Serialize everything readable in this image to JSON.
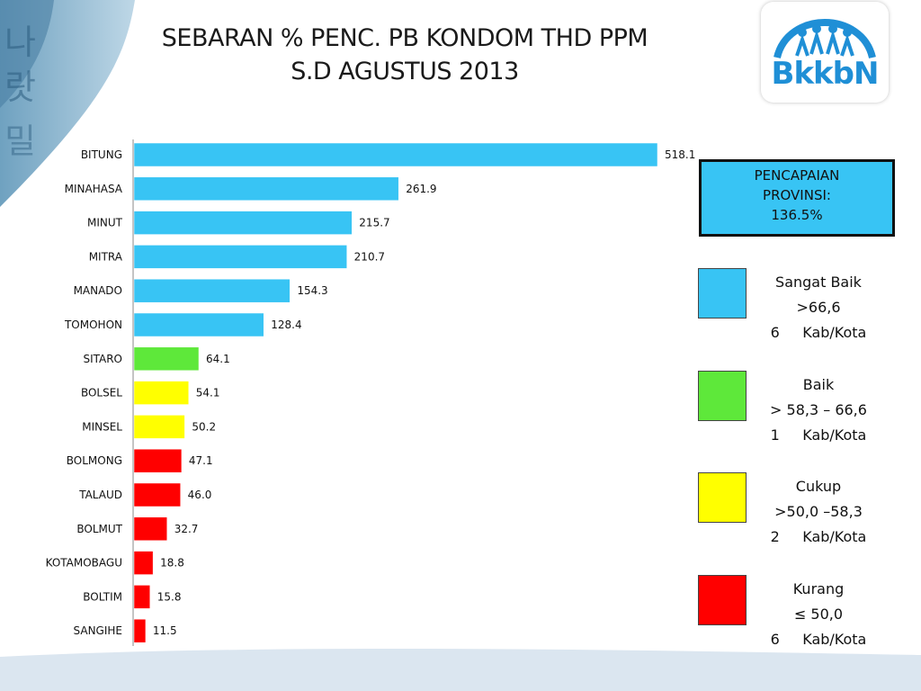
{
  "title_line1": "SEBARAN % PENC. PB KONDOM THD PPM",
  "title_line2": "S.D AGUSTUS 2013",
  "logo_text": "BkkbN",
  "provinsi": {
    "line1": "PENCAPAIAN",
    "line2": "PROVINSI:",
    "line3": "136.5%"
  },
  "legend": [
    {
      "label": "Sangat Baik",
      "range": ">66,6",
      "count": "6     Kab/Kota",
      "color": "#38c4f4"
    },
    {
      "label": "Baik",
      "range": "> 58,3 – 66,6",
      "count": "1     Kab/Kota",
      "color": "#5ee83a"
    },
    {
      "label": "Cukup",
      "range": ">50,0 –58,3",
      "count": "2     Kab/Kota",
      "color": "#ffff00"
    },
    {
      "label": "Kurang",
      "range": "≤ 50,0",
      "count": "6     Kab/Kota",
      "color": "#ff0000"
    }
  ],
  "chart_data": {
    "type": "bar",
    "orientation": "horizontal",
    "title": "SEBARAN % PENC. PB KONDOM THD PPM S.D AGUSTUS 2013",
    "categories": [
      "BITUNG",
      "MINAHASA",
      "MINUT",
      "MITRA",
      "MANADO",
      "TOMOHON",
      "SITARO",
      "BOLSEL",
      "MINSEL",
      "BOLMONG",
      "TALAUD",
      "BOLMUT",
      "KOTAMOBAGU",
      "BOLTIM",
      "SANGIHE"
    ],
    "values": [
      518.1,
      261.9,
      215.7,
      210.7,
      154.3,
      128.4,
      64.1,
      54.1,
      50.2,
      47.1,
      46.0,
      32.7,
      18.8,
      15.8,
      11.5
    ],
    "value_labels": [
      "518.1",
      "261.9",
      "215.7",
      "210.7",
      "154.3",
      "128.4",
      "64.1",
      "54.1",
      "50.2",
      "47.1",
      "46.0",
      "32.7",
      "18.8",
      "15.8",
      "11.5"
    ],
    "bar_colors": [
      "#38c4f4",
      "#38c4f4",
      "#38c4f4",
      "#38c4f4",
      "#38c4f4",
      "#38c4f4",
      "#5ee83a",
      "#ffff00",
      "#ffff00",
      "#ff0000",
      "#ff0000",
      "#ff0000",
      "#ff0000",
      "#ff0000",
      "#ff0000"
    ],
    "xlim": [
      0,
      518.1
    ],
    "grid": false,
    "xlabel": "",
    "ylabel": ""
  }
}
